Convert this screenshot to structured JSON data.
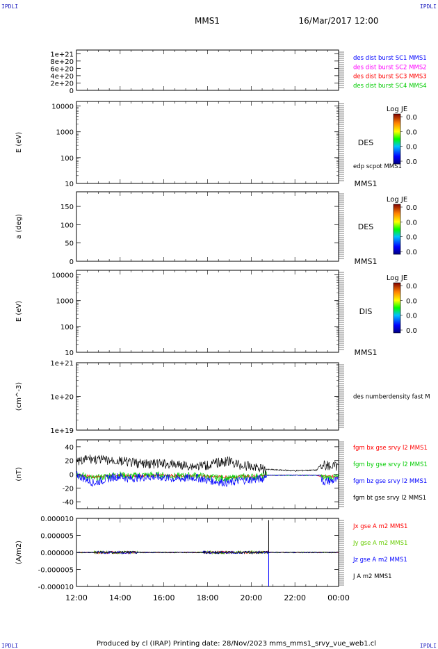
{
  "header": {
    "left_tag": "IPDLI",
    "right_tag": "IPDLI",
    "mission": "MMS1",
    "datetime": "16/Mar/2017 12:00"
  },
  "footer": {
    "text": "Produced by cl (IRAP)   Printing date: 28/Nov/2023   mms_mms1_srvy_vue_web1.cl",
    "left_tag": "IPDLI",
    "right_tag": "IPDLI"
  },
  "chart_data": {
    "type": "line",
    "x_ticks": [
      "12:00",
      "14:00",
      "16:00",
      "18:00",
      "20:00",
      "22:00",
      "00:00"
    ],
    "x_range_hours": [
      12,
      24
    ],
    "panels": [
      {
        "id": "dist",
        "ylabel": "",
        "scale": "linear",
        "ylim": [
          0,
          1.1e+21
        ],
        "ytick_labels": [
          "1e+21",
          "8e+20",
          "6e+20",
          "4e+20",
          "2e+20",
          "0"
        ],
        "ytick_values": [
          1e+21,
          8e+20,
          6e+20,
          4e+20,
          2e+20,
          0
        ],
        "dashed_zero": true,
        "legend": [
          {
            "text": "des dist burst SC1 MMS1",
            "color": "#0000ff"
          },
          {
            "text": "des dist burst SC2 MMS2",
            "color": "#ff00ff"
          },
          {
            "text": "des dist burst SC3 MMS3",
            "color": "#ff0000"
          },
          {
            "text": "des dist burst SC4 MMS4",
            "color": "#00cc00"
          }
        ]
      },
      {
        "id": "des-energy",
        "ylabel": "E (eV)",
        "scale": "log",
        "ytick_labels": [
          "10000",
          "1000",
          "100",
          "10"
        ],
        "ytick_values": [
          10000,
          1000,
          100,
          10
        ],
        "ylim": [
          10,
          15000
        ],
        "side_label": "DES",
        "extra_label": "edp scpot MMS1",
        "bottom_label": "MMS1",
        "colorbar": {
          "title": "Log JE",
          "ticks": [
            "0.0",
            "0.0",
            "0.0",
            "0.0"
          ]
        }
      },
      {
        "id": "des-pitch",
        "ylabel": "a (deg)",
        "scale": "linear",
        "ytick_labels": [
          "150",
          "100",
          "50",
          "0"
        ],
        "ytick_values": [
          150,
          100,
          50,
          0
        ],
        "ylim": [
          0,
          190
        ],
        "side_label": "DES",
        "bottom_label": "MMS1",
        "colorbar": {
          "title": "Log JE",
          "ticks": [
            "0.0",
            "0.0",
            "0.0",
            "0.0"
          ]
        }
      },
      {
        "id": "dis-energy",
        "ylabel": "E (eV)",
        "scale": "log",
        "ytick_labels": [
          "10000",
          "1000",
          "100",
          "10"
        ],
        "ytick_values": [
          10000,
          1000,
          100,
          10
        ],
        "ylim": [
          10,
          15000
        ],
        "side_label": "DIS",
        "bottom_label": "MMS1",
        "colorbar": {
          "title": "Log JE",
          "ticks": [
            "0.0",
            "0.0",
            "0.0",
            "0.0"
          ]
        }
      },
      {
        "id": "density",
        "ylabel": "(cm^-3)",
        "scale": "log",
        "ytick_labels": [
          "1e+21",
          "1e+20",
          "1e+19"
        ],
        "ytick_values": [
          1e+21,
          1e+20,
          1e+19
        ],
        "ylim": [
          1e+19,
          1e+21
        ],
        "legend": [
          {
            "text": "des numberdensity fast M",
            "color": "#000000"
          }
        ]
      },
      {
        "id": "fgm",
        "ylabel": "(nT)",
        "scale": "linear",
        "ytick_labels": [
          "40",
          "20",
          "0",
          "-20",
          "-40"
        ],
        "ytick_values": [
          40,
          20,
          0,
          -20,
          -40
        ],
        "ylim": [
          -50,
          50
        ],
        "legend": [
          {
            "text": "fgm bx gse srvy l2 MMS1",
            "color": "#ff0000"
          },
          {
            "text": "fgm by gse srvy l2 MMS1",
            "color": "#00cc00"
          },
          {
            "text": "fgm bz gse srvy l2 MMS1",
            "color": "#0000ff"
          },
          {
            "text": "fgm bt gse srvy l2 MMS1",
            "color": "#000000"
          }
        ]
      },
      {
        "id": "current",
        "ylabel": "(A/m2)",
        "scale": "linear",
        "ytick_labels": [
          "0.000010",
          "0.000005",
          "0.000000",
          "-0.000005",
          "-0.000010"
        ],
        "ytick_values": [
          1e-05,
          5e-06,
          0,
          -5e-06,
          -1e-05
        ],
        "ylim": [
          -1e-05,
          1e-05
        ],
        "legend": [
          {
            "text": "Jx gse A m2 MMS1",
            "color": "#ff0000"
          },
          {
            "text": "Jy gse A m2 MMS1",
            "color": "#66cc00"
          },
          {
            "text": "Jz gse A m2 MMS1",
            "color": "#0000ff"
          },
          {
            "text": "J A m2 MMS1",
            "color": "#000000"
          }
        ]
      }
    ],
    "series": {
      "bt_envelope": [
        [
          12.0,
          24
        ],
        [
          12.3,
          26
        ],
        [
          12.5,
          30
        ],
        [
          13.0,
          28
        ],
        [
          13.5,
          27
        ],
        [
          14.0,
          26
        ],
        [
          14.5,
          24
        ],
        [
          15.0,
          22
        ],
        [
          15.5,
          22
        ],
        [
          16.0,
          22
        ],
        [
          16.5,
          21
        ],
        [
          17.0,
          20
        ],
        [
          17.5,
          19
        ],
        [
          18.0,
          20
        ],
        [
          18.5,
          24
        ],
        [
          19.0,
          26
        ],
        [
          19.5,
          20
        ],
        [
          20.0,
          18
        ],
        [
          20.5,
          17
        ],
        [
          20.7,
          8
        ],
        [
          22.0,
          6
        ],
        [
          23.0,
          7
        ],
        [
          23.3,
          20
        ],
        [
          24.0,
          18
        ]
      ],
      "bz_envelope": [
        [
          12.0,
          -2
        ],
        [
          12.4,
          -8
        ],
        [
          12.8,
          -14
        ],
        [
          13.2,
          -10
        ],
        [
          13.6,
          -6
        ],
        [
          14.0,
          -4
        ],
        [
          14.4,
          -8
        ],
        [
          14.8,
          -6
        ],
        [
          15.4,
          -5
        ],
        [
          16.0,
          -6
        ],
        [
          16.5,
          -8
        ],
        [
          17.0,
          -7
        ],
        [
          17.5,
          -6
        ],
        [
          18.0,
          -10
        ],
        [
          18.5,
          -12
        ],
        [
          19.0,
          -14
        ],
        [
          19.5,
          -10
        ],
        [
          20.0,
          -9
        ],
        [
          20.5,
          -8
        ],
        [
          20.7,
          -2
        ],
        [
          22.0,
          -1
        ],
        [
          23.0,
          -2
        ],
        [
          23.3,
          -12
        ],
        [
          24.0,
          -10
        ]
      ],
      "current_spike": {
        "x": 20.8,
        "y_max": 9.5e-06,
        "y_min": -1e-05
      }
    }
  }
}
